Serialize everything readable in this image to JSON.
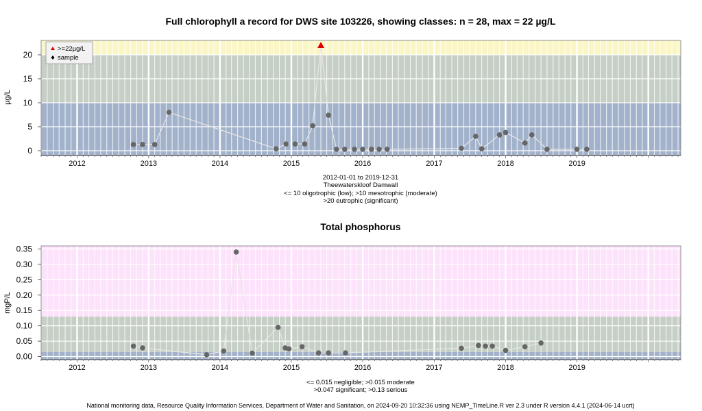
{
  "footer": "National monitoring data, Resource Quality Information Services, Department of Water and Sanitation, on 2024-09-20 10:32:36 using NEMP_TimeLine.R ver 2.3 under R version 4.4.1 (2024-06-14 ucrt)",
  "colors": {
    "oligotrophic": "#a2b2cb",
    "mesotrophic": "#c5cfc5",
    "eutrophic": "#fbf6c5",
    "tp_negligible": "#a2b2cb",
    "tp_moderate": "#c5cfc5",
    "tp_significant": "#c5cfc5",
    "tp_serious": "#fde2fb",
    "point": "#666666",
    "line": "#e6e6e6",
    "exceed_marker": "#dd0000"
  },
  "chart_data": [
    {
      "type": "scatter",
      "title": "Full chlorophyll a record for DWS site 103226, showing classes: n = 28, max = 22 µg/L",
      "ylabel": "µg/L",
      "xlim": [
        "2011-07-01",
        "2020-06-15"
      ],
      "ylim": [
        -1,
        23
      ],
      "x_ticks": [
        "2012",
        "2013",
        "2014",
        "2015",
        "2016",
        "2017",
        "2018",
        "2019"
      ],
      "y_ticks": [
        "0",
        "5",
        "10",
        "15",
        "20"
      ],
      "grid": true,
      "legend_position": "top-left",
      "legend": [
        ">=22µg/L",
        "sample"
      ],
      "caption": [
        "2012-01-01 to 2019-12-31",
        "Theewaterskloof Damwall",
        "<= 10 oligotrophic (low); >10 mesotrophic (moderate)",
        ">20 eutrophic (significant)"
      ],
      "class_bands": [
        {
          "from": -1,
          "to": 10,
          "color_key": "oligotrophic"
        },
        {
          "from": 10,
          "to": 20,
          "color_key": "mesotrophic"
        },
        {
          "from": 20,
          "to": 23,
          "color_key": "eutrophic"
        }
      ],
      "series": [
        {
          "name": "sample",
          "points": [
            {
              "date": "2012-10-15",
              "value": 1.3
            },
            {
              "date": "2012-12-01",
              "value": 1.3
            },
            {
              "date": "2013-02-01",
              "value": 1.3
            },
            {
              "date": "2013-04-15",
              "value": 8.0
            },
            {
              "date": "2014-10-15",
              "value": 0.4
            },
            {
              "date": "2014-12-05",
              "value": 1.4
            },
            {
              "date": "2015-01-20",
              "value": 1.4
            },
            {
              "date": "2015-03-10",
              "value": 1.4
            },
            {
              "date": "2015-04-20",
              "value": 5.2
            },
            {
              "date": "2015-06-01",
              "value": 22.0
            },
            {
              "date": "2015-07-10",
              "value": 7.4
            },
            {
              "date": "2015-08-20",
              "value": 0.3
            },
            {
              "date": "2015-10-01",
              "value": 0.3
            },
            {
              "date": "2015-11-20",
              "value": 0.3
            },
            {
              "date": "2016-01-01",
              "value": 0.3
            },
            {
              "date": "2016-02-15",
              "value": 0.3
            },
            {
              "date": "2016-03-25",
              "value": 0.3
            },
            {
              "date": "2016-05-05",
              "value": 0.3
            },
            {
              "date": "2017-05-20",
              "value": 0.5
            },
            {
              "date": "2017-08-01",
              "value": 3.0
            },
            {
              "date": "2017-09-01",
              "value": 0.4
            },
            {
              "date": "2017-12-01",
              "value": 3.3
            },
            {
              "date": "2018-01-01",
              "value": 3.8
            },
            {
              "date": "2018-04-10",
              "value": 1.6
            },
            {
              "date": "2018-05-15",
              "value": 3.3
            },
            {
              "date": "2018-08-01",
              "value": 0.3
            },
            {
              "date": "2019-01-01",
              "value": 0.3
            },
            {
              "date": "2019-02-20",
              "value": 0.3
            }
          ]
        }
      ],
      "exceedance": [
        {
          "date": "2015-06-01",
          "value": 22.0
        }
      ]
    },
    {
      "type": "scatter",
      "title": "Total phosphorus",
      "ylabel": "mgP/L",
      "xlim": [
        "2011-07-01",
        "2020-06-15"
      ],
      "ylim": [
        -0.01,
        0.36
      ],
      "x_ticks": [
        "2012",
        "2013",
        "2014",
        "2015",
        "2016",
        "2017",
        "2018",
        "2019"
      ],
      "y_ticks": [
        "0.00",
        "0.05",
        "0.10",
        "0.15",
        "0.20",
        "0.25",
        "0.30",
        "0.35"
      ],
      "grid": true,
      "caption": [
        "<= 0.015 negligible; >0.015 moderate",
        ">0.047 significant; >0.13 serious"
      ],
      "class_bands": [
        {
          "from": -0.01,
          "to": 0.015,
          "color_key": "tp_negligible"
        },
        {
          "from": 0.015,
          "to": 0.047,
          "color_key": "tp_moderate"
        },
        {
          "from": 0.047,
          "to": 0.13,
          "color_key": "tp_significant"
        },
        {
          "from": 0.13,
          "to": 0.36,
          "color_key": "tp_serious"
        }
      ],
      "series": [
        {
          "name": "sample",
          "points": [
            {
              "date": "2012-10-15",
              "value": 0.034
            },
            {
              "date": "2012-12-01",
              "value": 0.028
            },
            {
              "date": "2013-10-25",
              "value": 0.006
            },
            {
              "date": "2014-01-20",
              "value": 0.018
            },
            {
              "date": "2014-03-25",
              "value": 0.34
            },
            {
              "date": "2014-06-15",
              "value": 0.011
            },
            {
              "date": "2014-10-25",
              "value": 0.095
            },
            {
              "date": "2014-12-01",
              "value": 0.028
            },
            {
              "date": "2014-12-20",
              "value": 0.025
            },
            {
              "date": "2015-02-25",
              "value": 0.032
            },
            {
              "date": "2015-05-20",
              "value": 0.012
            },
            {
              "date": "2015-07-10",
              "value": 0.012
            },
            {
              "date": "2015-10-05",
              "value": 0.012
            },
            {
              "date": "2017-05-20",
              "value": 0.027
            },
            {
              "date": "2017-08-15",
              "value": 0.036
            },
            {
              "date": "2017-09-20",
              "value": 0.034
            },
            {
              "date": "2017-10-25",
              "value": 0.034
            },
            {
              "date": "2018-01-01",
              "value": 0.02
            },
            {
              "date": "2018-04-10",
              "value": 0.032
            },
            {
              "date": "2018-07-01",
              "value": 0.044
            }
          ]
        }
      ]
    }
  ]
}
